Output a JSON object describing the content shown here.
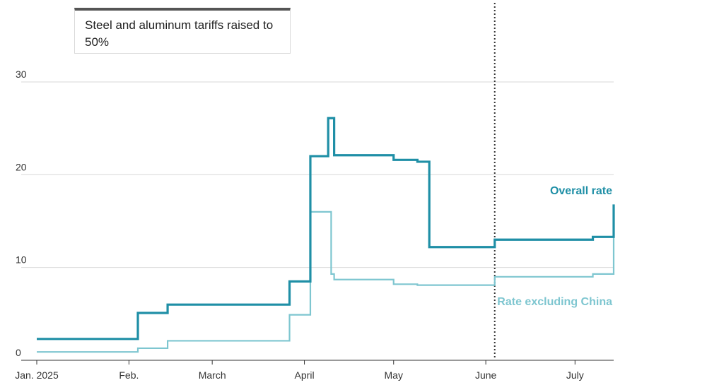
{
  "annotation": {
    "text": "Steel and aluminum tariffs raised to 50%",
    "date": "2025-06-04"
  },
  "colors": {
    "overall": "#1f8fa6",
    "ex_china": "#7ec6d0",
    "grid": "#d9d9d9",
    "annotation_line": "#333333"
  },
  "chart_data": {
    "type": "line",
    "step": true,
    "title": "",
    "xlabel": "",
    "ylabel": "",
    "ylim": [
      0,
      30
    ],
    "y_ticks": [
      0,
      10,
      20,
      30
    ],
    "x_ticks": [
      {
        "date": "2025-01-01",
        "label": "Jan. 2025"
      },
      {
        "date": "2025-02-01",
        "label": "Feb."
      },
      {
        "date": "2025-03-01",
        "label": "March"
      },
      {
        "date": "2025-04-01",
        "label": "April"
      },
      {
        "date": "2025-05-01",
        "label": "May"
      },
      {
        "date": "2025-06-01",
        "label": "June"
      },
      {
        "date": "2025-07-01",
        "label": "July"
      }
    ],
    "xlim": [
      "2025-01-01",
      "2025-07-14"
    ],
    "grid": true,
    "series": [
      {
        "name": "Overall rate",
        "points": [
          [
            "2025-01-01",
            2.3
          ],
          [
            "2025-02-04",
            5.1
          ],
          [
            "2025-02-14",
            6.0
          ],
          [
            "2025-03-27",
            8.5
          ],
          [
            "2025-04-03",
            22.0
          ],
          [
            "2025-04-09",
            26.1
          ],
          [
            "2025-04-11",
            22.1
          ],
          [
            "2025-05-01",
            21.6
          ],
          [
            "2025-05-09",
            21.4
          ],
          [
            "2025-05-13",
            12.2
          ],
          [
            "2025-06-04",
            13.0
          ],
          [
            "2025-07-07",
            13.3
          ],
          [
            "2025-07-14",
            16.8
          ]
        ]
      },
      {
        "name": "Rate excluding China",
        "points": [
          [
            "2025-01-01",
            0.9
          ],
          [
            "2025-02-04",
            1.3
          ],
          [
            "2025-02-14",
            2.1
          ],
          [
            "2025-03-27",
            4.9
          ],
          [
            "2025-04-03",
            16.0
          ],
          [
            "2025-04-10",
            9.3
          ],
          [
            "2025-04-11",
            8.7
          ],
          [
            "2025-05-01",
            8.2
          ],
          [
            "2025-05-09",
            8.1
          ],
          [
            "2025-06-04",
            9.0
          ],
          [
            "2025-07-07",
            9.3
          ],
          [
            "2025-07-14",
            13.4
          ]
        ]
      }
    ]
  }
}
